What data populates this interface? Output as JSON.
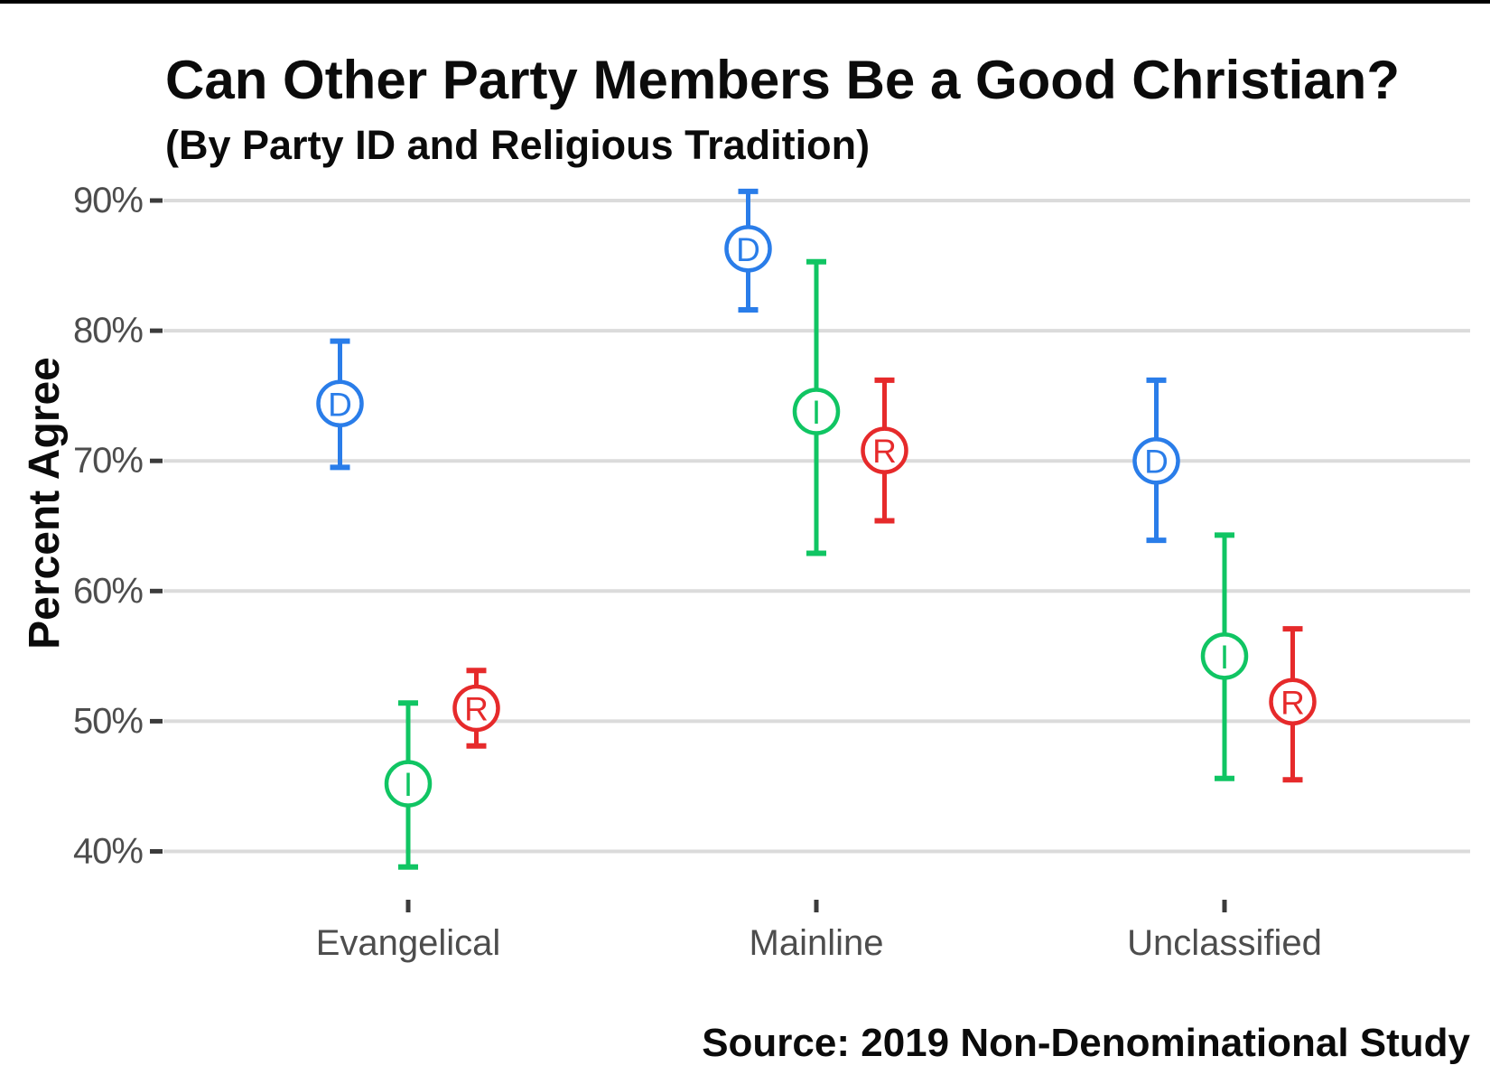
{
  "chart_data": {
    "type": "scatter",
    "subtype": "pointrange",
    "title": "Can Other Party Members Be a Good Christian?",
    "subtitle": "(By Party ID and Religious Tradition)",
    "ylabel": "Percent Agree",
    "caption": "Source: 2019 Non-Denominational Study",
    "categories": [
      "Evangelical",
      "Mainline",
      "Unclassified"
    ],
    "y_ticks": [
      90,
      80,
      70,
      60,
      50,
      40
    ],
    "y_tick_suffix": "%",
    "ylim": [
      36,
      93
    ],
    "grid": "horizontal-only",
    "legend": "none (markers labeled with party letters)",
    "series": [
      {
        "letter": "D",
        "color": "#2A7DE9",
        "values": [
          74.4,
          86.3,
          70.0
        ],
        "ci_low": [
          69.5,
          81.6,
          63.9
        ],
        "ci_high": [
          79.2,
          90.7,
          76.2
        ]
      },
      {
        "letter": "I",
        "color": "#10C563",
        "values": [
          45.2,
          73.8,
          55.0
        ],
        "ci_low": [
          38.8,
          62.9,
          45.6
        ],
        "ci_high": [
          51.4,
          85.3,
          64.3
        ]
      },
      {
        "letter": "R",
        "color": "#E62A2B",
        "values": [
          51.0,
          70.8,
          51.5
        ],
        "ci_low": [
          48.1,
          65.4,
          45.5
        ],
        "ci_high": [
          53.9,
          76.2,
          57.1
        ]
      }
    ],
    "grid_color": "#DBDBDB",
    "axis_text_color": "#4D4D4D",
    "tick_mark_color": "#3B3B3B",
    "background_color": "#FFFFFF"
  }
}
